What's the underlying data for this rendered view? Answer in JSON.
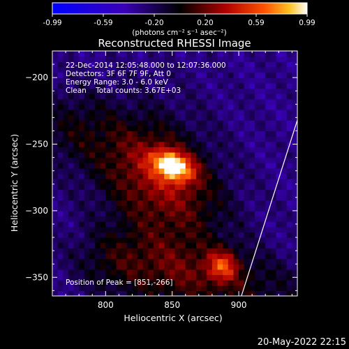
{
  "chart_data": {
    "type": "heatmap",
    "title": "Reconstructed RHESSI Image",
    "xlabel": "Heliocentric X (arcsec)",
    "ylabel": "Heliocentric Y (arcsec)",
    "xlim": [
      760,
      944
    ],
    "ylim": [
      -364,
      -180
    ],
    "x_ticks": [
      800,
      850,
      900
    ],
    "y_ticks": [
      -200,
      -250,
      -300,
      -350
    ],
    "colorbar": {
      "ticks": [
        "-0.99",
        "-0.59",
        "-0.20",
        "0.20",
        "0.59",
        "0.99"
      ],
      "range": [
        -0.99,
        0.99
      ],
      "unit_label": "(photons cm⁻² s⁻¹ asec⁻²)"
    },
    "annotations": [
      "22-Dec-2014 12:05:48.000 to 12:07:36.000",
      "Detectors: 3F 6F 7F 9F, Att 0",
      "Energy Range: 3.0 - 6.0 keV",
      "Clean    Total counts: 3.67E+03"
    ],
    "peak_label": "Position of Peak = [851,-266]",
    "peak": [
      851,
      -266
    ],
    "sources": [
      {
        "x": 851,
        "y": -266,
        "sx": 11,
        "sy": 7,
        "rot_deg": -25,
        "amp": 1.0
      },
      {
        "x": 836,
        "y": -270,
        "sx": 40,
        "sy": 22,
        "rot_deg": -35,
        "amp": 0.4
      },
      {
        "x": 888,
        "y": -341,
        "sx": 8,
        "sy": 8,
        "rot_deg": 0,
        "amp": 0.55
      },
      {
        "x": 880,
        "y": -350,
        "sx": 55,
        "sy": 18,
        "rot_deg": -10,
        "amp": 0.35
      },
      {
        "x": 772,
        "y": -238,
        "sx": 22,
        "sy": 22,
        "rot_deg": 0,
        "amp": 0.2
      },
      {
        "x": 800,
        "y": -340,
        "sx": 18,
        "sy": 16,
        "rot_deg": 0,
        "amp": 0.12
      }
    ],
    "limb_line": [
      [
        902,
        -364
      ],
      [
        944,
        -232
      ]
    ]
  },
  "timestamp": "20-May-2022 22:15"
}
